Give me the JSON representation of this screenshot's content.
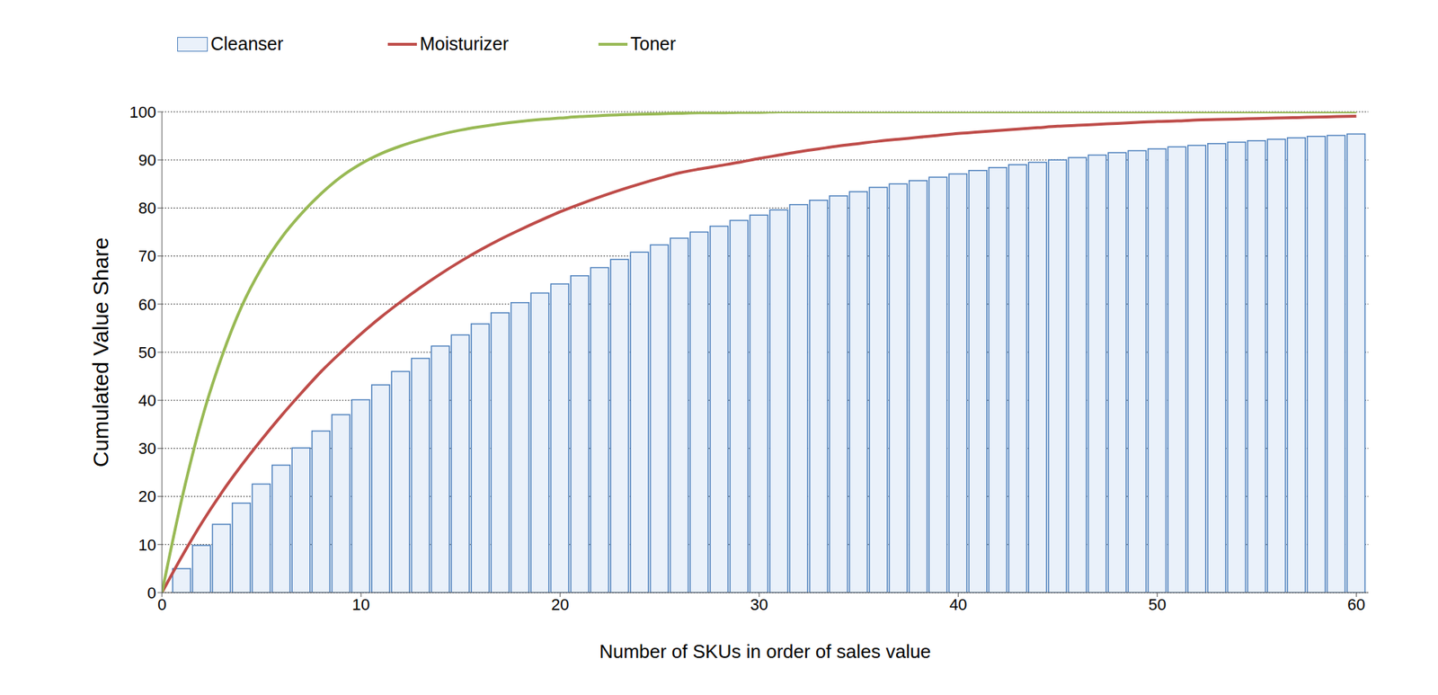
{
  "chart_data": {
    "type": "bar",
    "x_label": "Number of SKUs in order of sales value",
    "y_label": "Cumulated Value Share",
    "x": [
      0,
      1,
      2,
      3,
      4,
      5,
      6,
      7,
      8,
      9,
      10,
      11,
      12,
      13,
      14,
      15,
      16,
      17,
      18,
      19,
      20,
      21,
      22,
      23,
      24,
      25,
      26,
      27,
      28,
      29,
      30,
      31,
      32,
      33,
      34,
      35,
      36,
      37,
      38,
      39,
      40,
      41,
      42,
      43,
      44,
      45,
      46,
      47,
      48,
      49,
      50,
      51,
      52,
      53,
      54,
      55,
      56,
      57,
      58,
      59,
      60
    ],
    "series": [
      {
        "name": "Cleanser",
        "type": "bar",
        "color": "#4a7ebb",
        "values": [
          null,
          5,
          9.8,
          14.2,
          18.6,
          22.6,
          26.5,
          30.1,
          33.6,
          37,
          40.1,
          43.2,
          46,
          48.7,
          51.3,
          53.6,
          55.9,
          58.2,
          60.3,
          62.3,
          64.2,
          65.9,
          67.6,
          69.3,
          70.8,
          72.3,
          73.7,
          75,
          76.2,
          77.4,
          78.5,
          79.6,
          80.7,
          81.6,
          82.5,
          83.4,
          84.3,
          85,
          85.7,
          86.4,
          87.1,
          87.8,
          88.4,
          89,
          89.5,
          90,
          90.5,
          91,
          91.5,
          91.9,
          92.3,
          92.7,
          93,
          93.4,
          93.7,
          94,
          94.3,
          94.6,
          94.9,
          95.1,
          95.4
        ]
      },
      {
        "name": "Moisturizer",
        "type": "line",
        "color": "#be4b48",
        "values": [
          0,
          7.5,
          14.5,
          20.8,
          26.5,
          31.8,
          36.8,
          41.5,
          46,
          50,
          53.8,
          57.3,
          60.5,
          63.5,
          66.3,
          68.9,
          71.3,
          73.5,
          75.5,
          77.4,
          79.2,
          80.8,
          82.3,
          83.7,
          85,
          86.2,
          87.3,
          88.1,
          88.8,
          89.5,
          90.3,
          91,
          91.7,
          92.3,
          92.9,
          93.4,
          93.9,
          94.3,
          94.7,
          95.1,
          95.5,
          95.8,
          96.1,
          96.4,
          96.7,
          97,
          97.2,
          97.4,
          97.6,
          97.8,
          98,
          98.1,
          98.3,
          98.4,
          98.5,
          98.6,
          98.7,
          98.8,
          98.9,
          99,
          99.1
        ]
      },
      {
        "name": "Toner",
        "type": "line",
        "color": "#98b954",
        "values": [
          0,
          19.5,
          36,
          49,
          59.5,
          67.5,
          73.8,
          78.8,
          83,
          86.5,
          89.2,
          91.3,
          92.9,
          94.2,
          95.3,
          96.2,
          96.9,
          97.5,
          98,
          98.4,
          98.7,
          99,
          99.2,
          99.4,
          99.5,
          99.6,
          99.7,
          99.8,
          99.8,
          99.9,
          99.9,
          100,
          100,
          100,
          100,
          100,
          100,
          100,
          100,
          100,
          100,
          100,
          100,
          100,
          100,
          100,
          100,
          100,
          100,
          100,
          100,
          100,
          100,
          100,
          100,
          100,
          100,
          100,
          100,
          100,
          100
        ]
      }
    ],
    "xlim": [
      0,
      60.6
    ],
    "xticks": [
      0,
      10,
      20,
      30,
      40,
      50,
      60
    ],
    "ylim": [
      0,
      100
    ],
    "yticks": [
      0,
      10,
      20,
      30,
      40,
      50,
      60,
      70,
      80,
      90,
      100
    ],
    "grid": true,
    "legend": "top"
  }
}
